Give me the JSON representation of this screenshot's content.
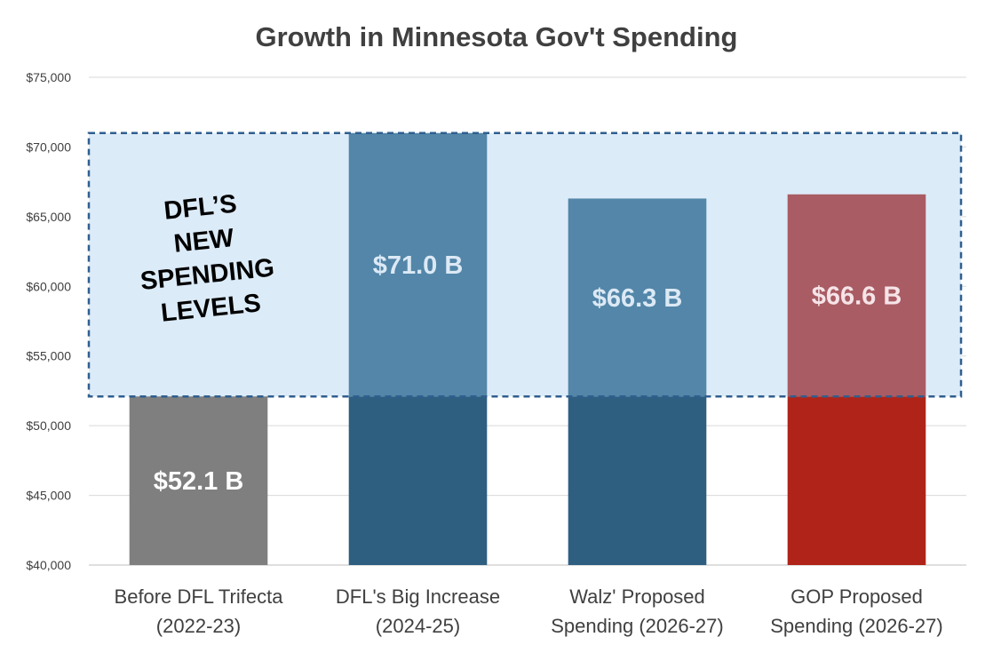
{
  "chart_data": {
    "type": "bar",
    "title": "Growth in Minnesota Gov't Spending",
    "categories": [
      [
        "Before DFL Trifecta",
        "(2022-23)"
      ],
      [
        "DFL's Big Increase",
        "(2024-25)"
      ],
      [
        "Walz' Proposed",
        "Spending (2026-27)"
      ],
      [
        "GOP Proposed",
        "Spending (2026-27)"
      ]
    ],
    "values": [
      52100,
      71000,
      66300,
      66600
    ],
    "data_labels": [
      "$52.1 B",
      "$71.0 B",
      "$66.3 B",
      "$66.6 B"
    ],
    "ylim": [
      40000,
      75000
    ],
    "yticks": [
      40000,
      45000,
      50000,
      55000,
      60000,
      65000,
      70000,
      75000
    ],
    "ytick_labels": [
      "$40,000",
      "$45,000",
      "$50,000",
      "$55,000",
      "$60,000",
      "$65,000",
      "$70,000",
      "$75,000"
    ],
    "grid": true,
    "baseline_value": 52100,
    "highlight_band": {
      "from": 52100,
      "to": 71000
    },
    "annotation": [
      "DFL’S",
      "NEW",
      "SPENDING",
      "LEVELS"
    ],
    "colors": {
      "base": [
        "#7f7f7f",
        "#2e5f80",
        "#2e5f80",
        "#b02318"
      ],
      "increase": [
        "#7f7f7f",
        "#5386a8",
        "#5386a8",
        "#a95c63"
      ],
      "band_fill": "#dcebf8",
      "band_stroke": "#2f5f8f",
      "label_light": "#ffffff",
      "label_blue": "#dce9f5",
      "label_pink": "#f5e4e8",
      "gridline": "#d9d9d9",
      "axis": "#bfbfbf"
    }
  }
}
